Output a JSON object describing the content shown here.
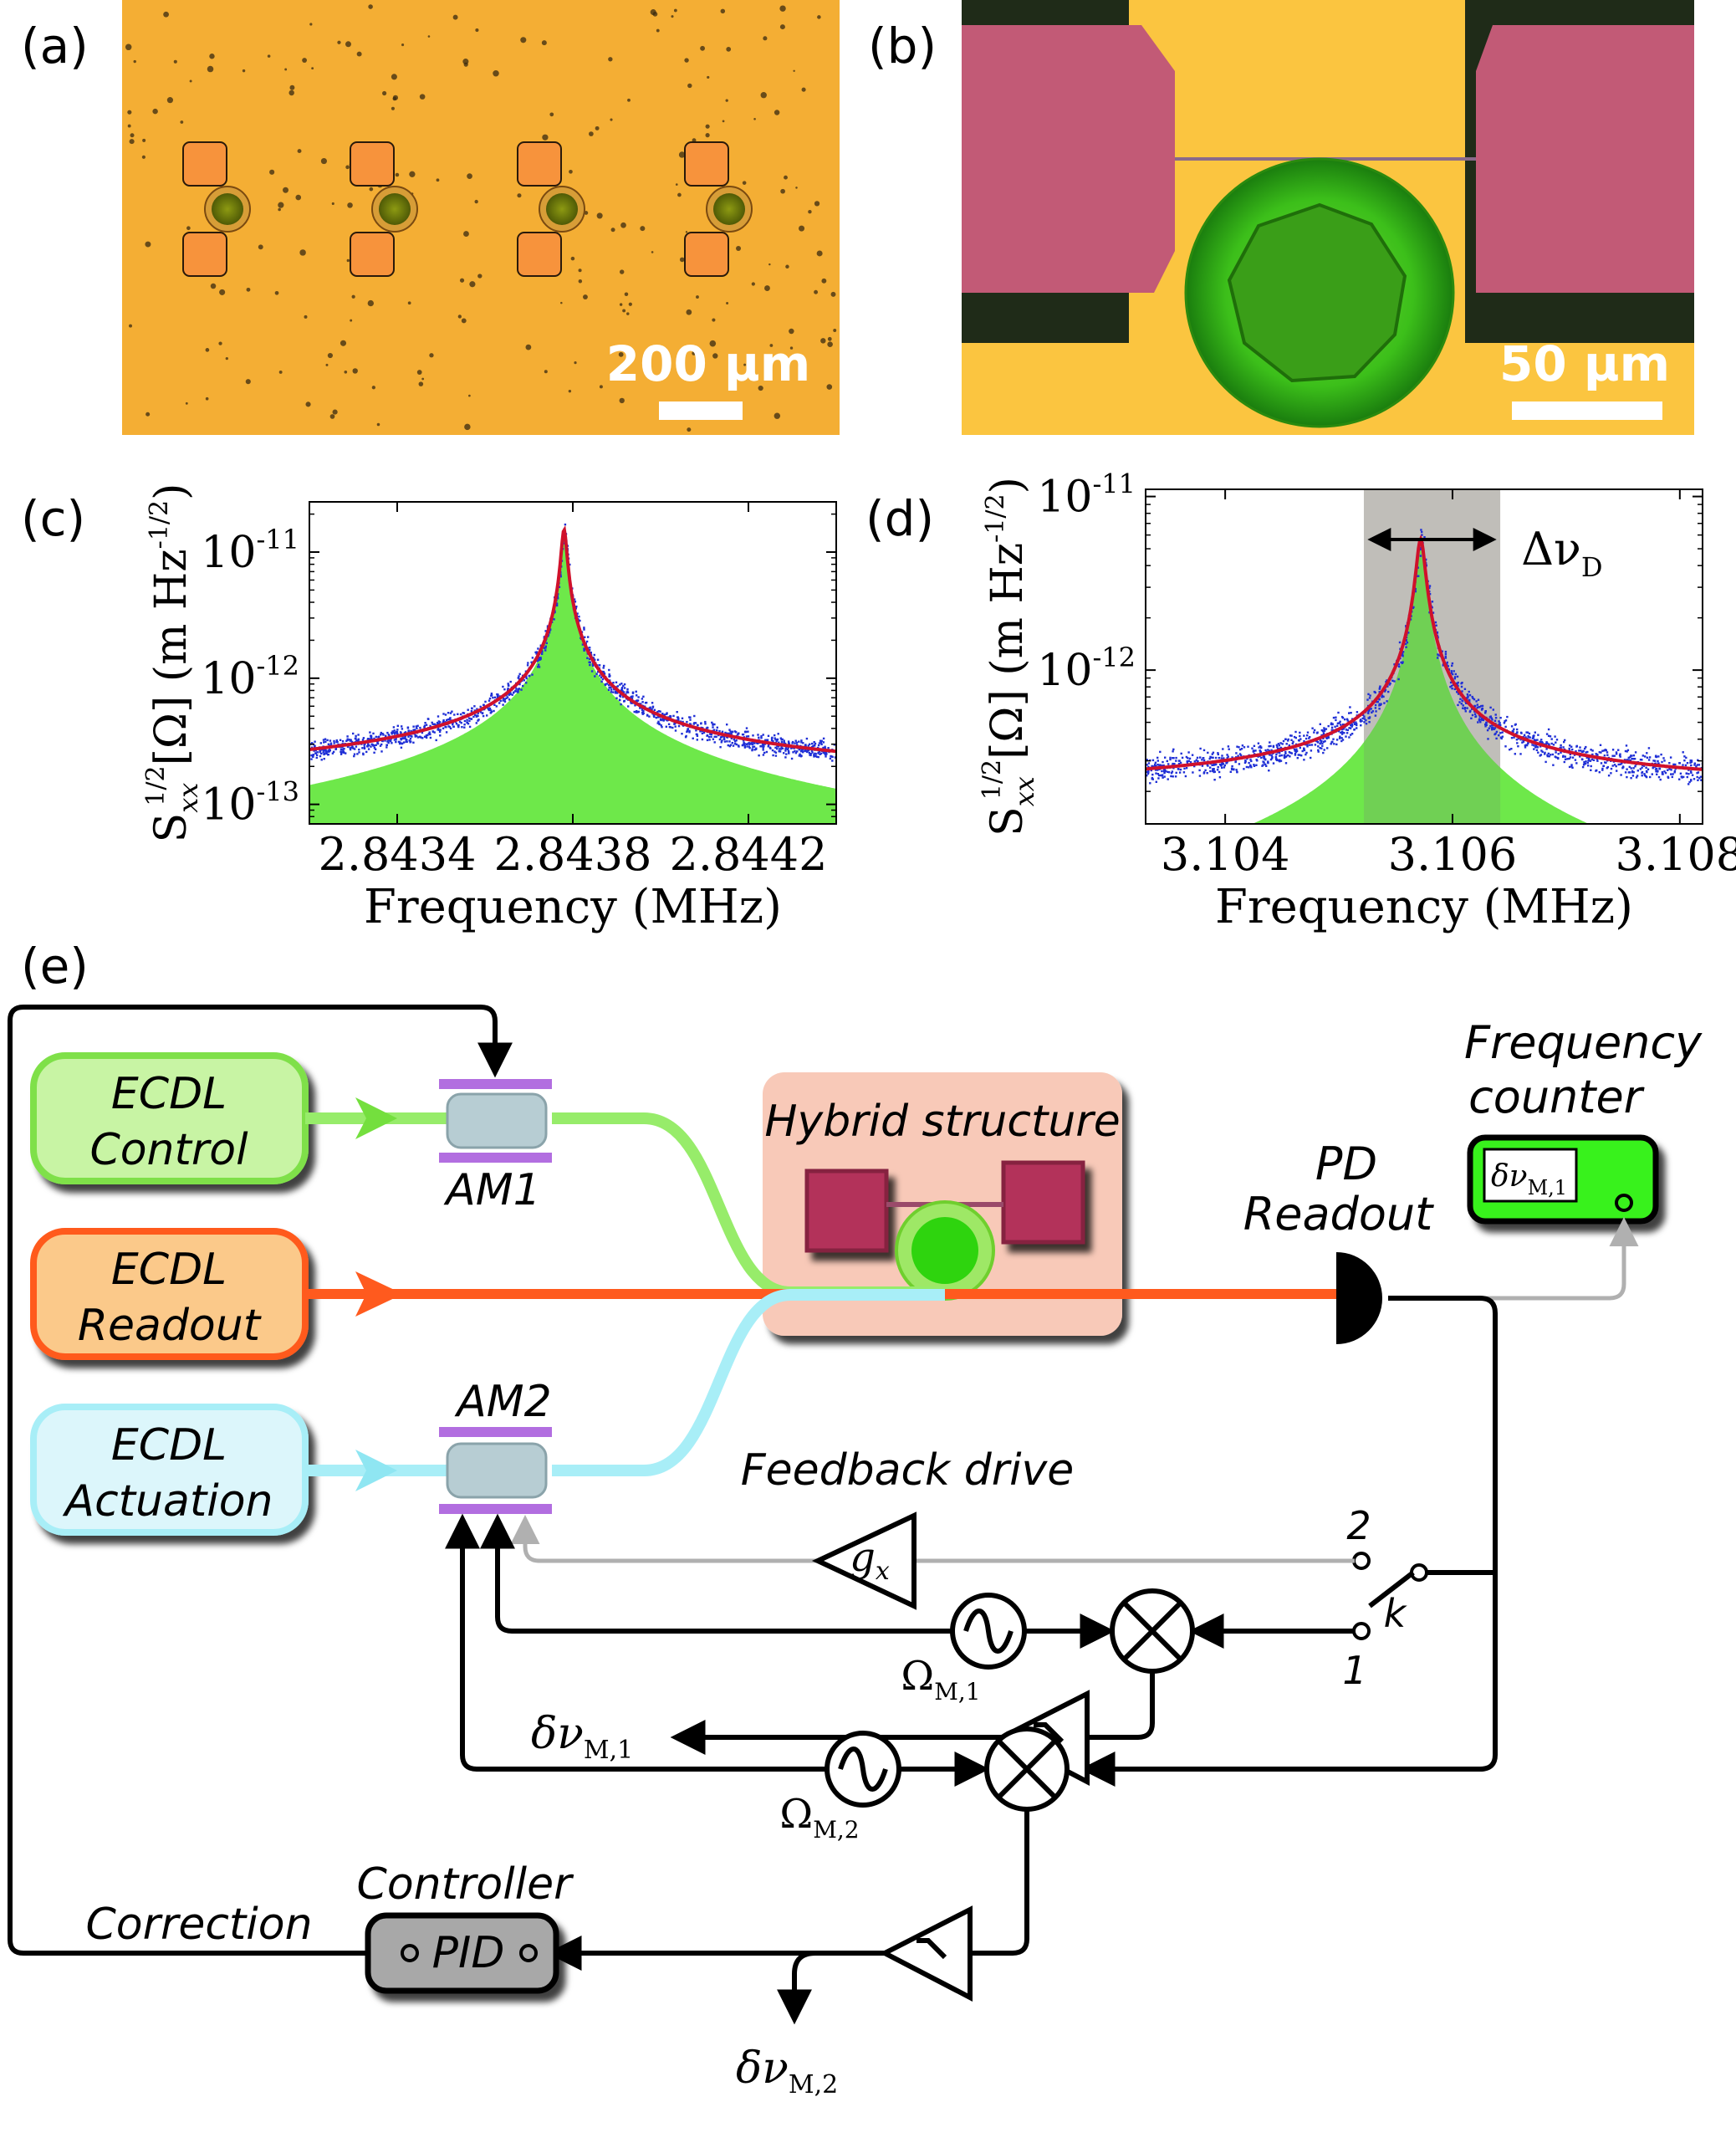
{
  "panels": {
    "a": {
      "label": "(a)",
      "scalebar": "200 µm"
    },
    "b": {
      "label": "(b)",
      "scalebar": "50 µm"
    },
    "c": {
      "label": "(c)"
    },
    "d": {
      "label": "(d)"
    },
    "e": {
      "label": "(e)"
    }
  },
  "chart_data": [
    {
      "type": "area",
      "panel": "c",
      "ylabel": "S_xx^{1/2}[Ω] (m Hz^{-1/2})",
      "xlabel": "Frequency (MHz)",
      "x_ticks": [
        "2.8434",
        "2.8438",
        "2.8442"
      ],
      "x_tick_values": [
        2.8434,
        2.8438,
        2.8442
      ],
      "y_ticks": [
        "10^-11",
        "10^-12",
        "10^-13"
      ],
      "y_tick_values": [
        1e-11,
        1e-12,
        1e-13
      ],
      "xlim": [
        2.8432,
        2.8444
      ],
      "ylim": [
        7e-14,
        2.5e-11
      ],
      "yscale": "log",
      "grid": false,
      "series": [
        {
          "kind": "lorentzian",
          "color": "#d0112b",
          "center": 2.84378,
          "peak": 1.5e-11,
          "hwhm": 5.5e-06,
          "floor": 1.3e-13
        },
        {
          "kind": "filled-lorentzian",
          "color": "#6ee84a",
          "center": 2.84378,
          "peak": 1.5e-11,
          "hwhm": 5.5e-06,
          "floor": 0
        },
        {
          "kind": "data-points",
          "color": "#1f2fd6"
        }
      ]
    },
    {
      "type": "area",
      "panel": "d",
      "ylabel": "S_xx^{1/2}[Ω] (m Hz^{-1/2})",
      "xlabel": "Frequency (MHz)",
      "x_ticks": [
        "3.104",
        "3.106",
        "3.108"
      ],
      "x_tick_values": [
        3.104,
        3.106,
        3.108
      ],
      "y_ticks": [
        "10^-11",
        "10^-12"
      ],
      "y_tick_values": [
        1e-11,
        1e-12
      ],
      "xlim": [
        3.1033,
        3.1082
      ],
      "ylim": [
        1.3e-13,
        1.1e-11
      ],
      "yscale": "log",
      "grid": false,
      "annotation": "Δν_D",
      "band": [
        3.10522,
        3.10642
      ],
      "series": [
        {
          "kind": "lorentzian",
          "color": "#d0112b",
          "center": 3.10572,
          "peak": 5.5e-12,
          "hwhm": 3.5e-05,
          "floor": 1.9e-13
        },
        {
          "kind": "filled-lorentzian",
          "color": "#6ee84a",
          "center": 3.10572,
          "peak": 5.5e-12,
          "hwhm": 3.5e-05,
          "floor": 0
        },
        {
          "kind": "data-points",
          "color": "#1f2fd6"
        }
      ]
    }
  ],
  "diagram": {
    "lasers": {
      "control": [
        "ECDL",
        "Control"
      ],
      "readout": [
        "ECDL",
        "Readout"
      ],
      "actuation": [
        "ECDL",
        "Actuation"
      ]
    },
    "modulators": {
      "am1": "AM1",
      "am2": "AM2"
    },
    "hybrid": "Hybrid structure",
    "pd": [
      "PD",
      "Readout"
    ],
    "counter": [
      "Frequency",
      "counter"
    ],
    "counter_display": {
      "sym": "δν",
      "sub": "M,1"
    },
    "feedback_drive": "Feedback drive",
    "gain": {
      "sym": "g",
      "sub": "x"
    },
    "switch": {
      "pos2": "2",
      "pos1": "1",
      "k": "k"
    },
    "osc1": {
      "sym": "Ω",
      "sub": "M,1"
    },
    "osc2": {
      "sym": "Ω",
      "sub": "M,2"
    },
    "out1": {
      "sym": "δν",
      "sub": "M,1"
    },
    "out2": {
      "sym": "δν",
      "sub": "M,2"
    },
    "controller": "Controller",
    "pid": "PID",
    "correction": "Correction"
  },
  "colors": {
    "control": "#97ec6a",
    "readout": "#ff5a1e",
    "actuation": "#a8eef7",
    "modulator_plate": "#b26ee0",
    "hybrid_bg": "#f8c9b8",
    "pad": "#b3305a",
    "microdisk": "#36d22a",
    "wafer": "#f4ae34"
  }
}
